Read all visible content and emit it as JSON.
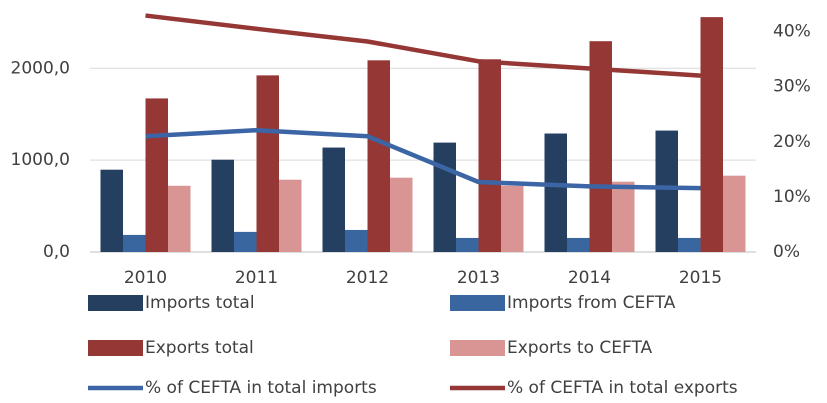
{
  "chart_data": {
    "type": "bar",
    "categories": [
      "2010",
      "2011",
      "2012",
      "2013",
      "2014",
      "2015"
    ],
    "series": [
      {
        "name": "Imports total",
        "type": "bar",
        "color": "#243f60",
        "values": [
          896,
          1005,
          1137,
          1191,
          1290,
          1322
        ]
      },
      {
        "name": "Imports from CEFTA",
        "type": "bar",
        "color": "#3a66a0",
        "values": [
          186,
          219,
          240,
          153,
          153,
          153
        ]
      },
      {
        "name": "Exports total",
        "type": "bar",
        "color": "#953735",
        "values": [
          1672,
          1923,
          2087,
          2098,
          2295,
          2557
        ]
      },
      {
        "name": "Exports to CEFTA",
        "type": "bar",
        "color": "#d99594",
        "values": [
          721,
          787,
          809,
          721,
          765,
          831
        ]
      },
      {
        "name": "% of CEFTA in total imports",
        "type": "line",
        "axis": "y2",
        "color": "#3c65a5",
        "values": [
          21.0,
          22.1,
          21.0,
          12.7,
          11.9,
          11.6
        ]
      },
      {
        "name": "% of CEFTA in total exports",
        "type": "line",
        "axis": "y2",
        "color": "#953735",
        "values": [
          42.9,
          40.5,
          38.2,
          34.6,
          33.3,
          32.0
        ]
      }
    ],
    "ylim": [
      0,
      2700
    ],
    "yticks": [
      {
        "value": 0,
        "label": "0,0"
      },
      {
        "value": 1000,
        "label": "1000,0"
      },
      {
        "value": 2000,
        "label": "2000,0"
      }
    ],
    "y2lim": [
      0,
      45
    ],
    "y2ticks": [
      {
        "value": 0,
        "label": "0%"
      },
      {
        "value": 10,
        "label": "10%"
      },
      {
        "value": 20,
        "label": "20%"
      },
      {
        "value": 30,
        "label": "30%"
      },
      {
        "value": 40,
        "label": "40%"
      }
    ],
    "grid": true,
    "legend": "bottom"
  }
}
